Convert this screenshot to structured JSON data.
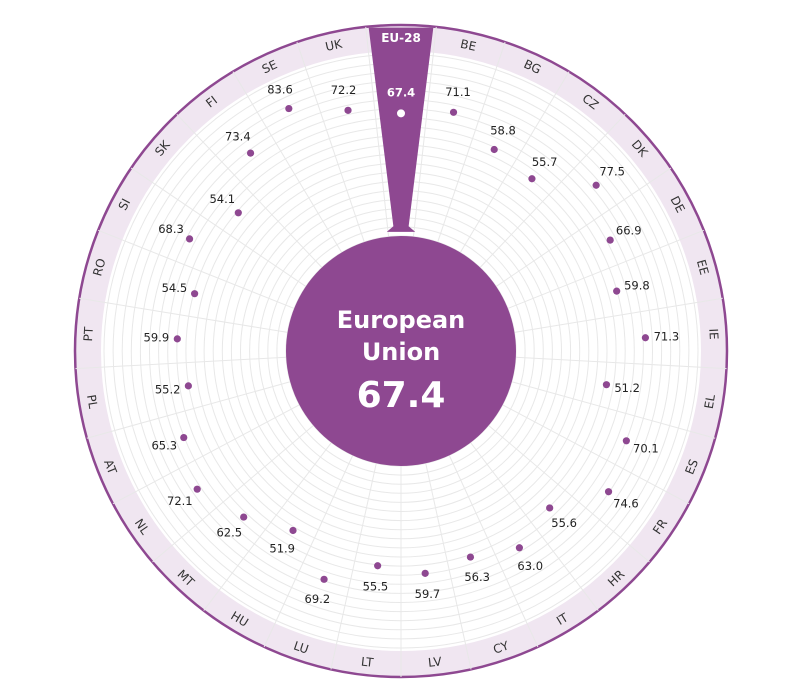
{
  "chart_data": {
    "type": "radial-dot",
    "highlight": "EU-28",
    "center": {
      "title_line1": "European",
      "title_line2": "Union",
      "value": "67.4"
    },
    "radial_range": [
      0,
      100
    ],
    "grid": true,
    "categories": [
      "EU-28",
      "BE",
      "BG",
      "CZ",
      "DK",
      "DE",
      "EE",
      "IE",
      "EL",
      "ES",
      "FR",
      "HR",
      "IT",
      "CY",
      "LV",
      "LT",
      "LU",
      "HU",
      "MT",
      "NL",
      "AT",
      "PL",
      "PT",
      "RO",
      "SI",
      "SK",
      "FI",
      "SE",
      "UK"
    ],
    "values": [
      67.4,
      71.1,
      58.8,
      55.7,
      77.5,
      66.9,
      59.8,
      71.3,
      51.2,
      70.1,
      74.6,
      55.6,
      63.0,
      56.3,
      59.7,
      55.5,
      69.2,
      51.9,
      62.5,
      72.1,
      65.3,
      55.2,
      59.9,
      54.5,
      68.3,
      54.1,
      73.4,
      83.6,
      72.2
    ],
    "labels": [
      "67.4",
      "71.1",
      "58.8",
      "55.7",
      "77.5",
      "66.9",
      "59.8",
      "71.3",
      "51.2",
      "70.1",
      "74.6",
      "55.6",
      "63.0",
      "56.3",
      "59.7",
      "55.5",
      "69.2",
      "51.9",
      "62.5",
      "72.1",
      "65.3",
      "55.2",
      "59.9",
      "54.5",
      "68.3",
      "54.1",
      "73.4",
      "83.6",
      "72.2"
    ]
  },
  "colors": {
    "accent": "#8e4891",
    "band": "#f0e6f1",
    "grid": "#e8e8e8",
    "dot": "#8e4891"
  }
}
